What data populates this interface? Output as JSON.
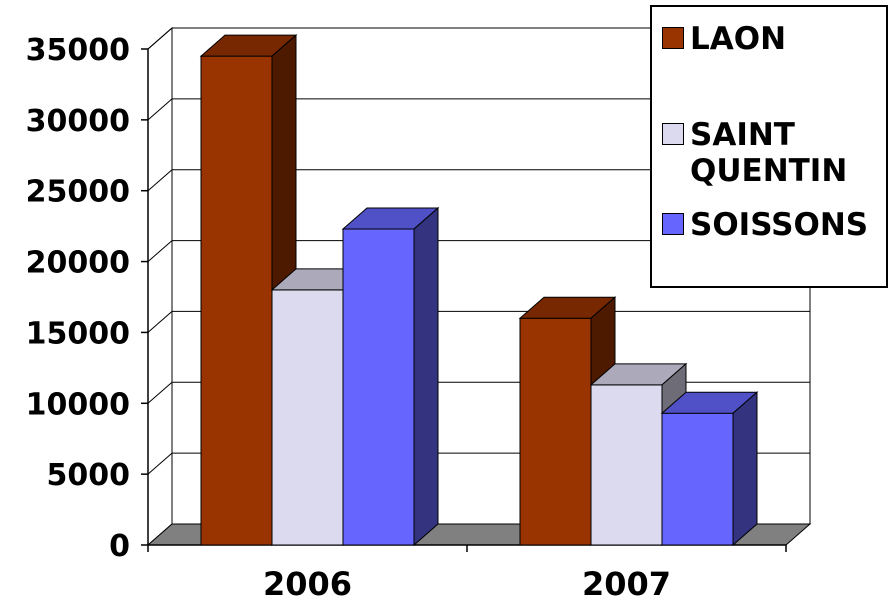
{
  "chart_data": {
    "type": "bar",
    "categories": [
      "2006",
      "2007"
    ],
    "series": [
      {
        "name": "LAON",
        "values": [
          34500,
          16000
        ],
        "color": "#993300"
      },
      {
        "name": "SAINT QUENTIN",
        "values": [
          18000,
          11300
        ],
        "color": "#dcdaee"
      },
      {
        "name": "SOISSONS",
        "values": [
          22300,
          9300
        ],
        "color": "#6666ff"
      }
    ],
    "yticks": [
      "0",
      "5000",
      "10000",
      "15000",
      "20000",
      "25000",
      "30000",
      "35000"
    ],
    "ylim": [
      0,
      35000
    ],
    "grid": true,
    "legend_position": "top-right",
    "style": "3d"
  },
  "legend": {
    "items": [
      {
        "label": "LAON"
      },
      {
        "label": "SAINT\nQUENTIN"
      },
      {
        "label": "SOISSONS"
      }
    ]
  }
}
